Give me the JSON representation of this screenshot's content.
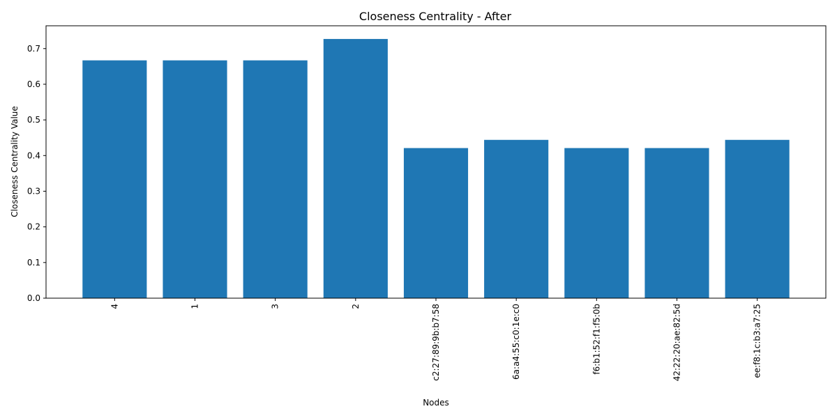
{
  "chart_data": {
    "type": "bar",
    "title": "Closeness Centrality - After",
    "xlabel": "Nodes",
    "ylabel": "Closeness Centrality Value",
    "categories": [
      "4",
      "1",
      "3",
      "2",
      "c2:27:89:9b:b7:58",
      "6a:a4:55:c0:1e:c0",
      "f6:b1:52:f1:f5:0b",
      "42:22:20:ae:82:5d",
      "ee:f8:1c:b3:a7:25"
    ],
    "values": [
      0.667,
      0.667,
      0.667,
      0.727,
      0.421,
      0.444,
      0.421,
      0.421,
      0.444
    ],
    "ylim": [
      0,
      0.764
    ],
    "yticks": [
      "0.0",
      "0.1",
      "0.2",
      "0.3",
      "0.4",
      "0.5",
      "0.6",
      "0.7"
    ],
    "bar_color": "#1f77b4",
    "grid": false,
    "legend": "none"
  }
}
